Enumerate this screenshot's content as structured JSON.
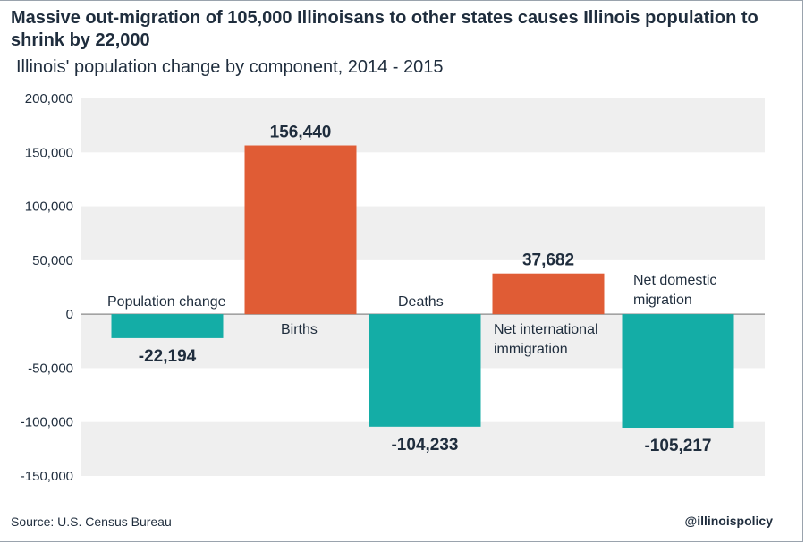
{
  "header": {
    "title": "Massive out-migration of 105,000 Illinoisans to other states causes Illinois population to shrink by 22,000",
    "subtitle": "Illinois' population change by component, 2014 - 2015"
  },
  "footer": {
    "source": "Source: U.S. Census Bureau",
    "handle": "@illinoispolicy"
  },
  "colors": {
    "positive": "#e05c35",
    "negative": "#14ada6",
    "band": "#efefef",
    "zero_line": "#8a8a8a"
  },
  "chart_data": {
    "type": "bar",
    "title": "Illinois' population change by component, 2014 - 2015",
    "categories": [
      {
        "label": "Population change",
        "lines": [
          "Population change"
        ]
      },
      {
        "label": "Births",
        "lines": [
          "Births"
        ]
      },
      {
        "label": "Deaths",
        "lines": [
          "Deaths"
        ]
      },
      {
        "label": "Net international immigration",
        "lines": [
          "Net international",
          "immigration"
        ]
      },
      {
        "label": "Net domestic migration",
        "lines": [
          "Net domestic",
          "migration"
        ]
      }
    ],
    "values": [
      -22194,
      156440,
      -104233,
      37682,
      -105217
    ],
    "value_labels": [
      "-22,194",
      "156,440",
      "-104,233",
      "37,682",
      "-105,217"
    ],
    "ylim": [
      -150000,
      200000
    ],
    "yticks": [
      200000,
      150000,
      100000,
      50000,
      0,
      -50000,
      -100000,
      -150000
    ],
    "ytick_labels": [
      "200,000",
      "150,000",
      "100,000",
      "50,000",
      "0",
      "-50,000",
      "-100,000",
      "-150,000"
    ],
    "xlabel": "",
    "ylabel": "",
    "grid": "alternating bands"
  }
}
